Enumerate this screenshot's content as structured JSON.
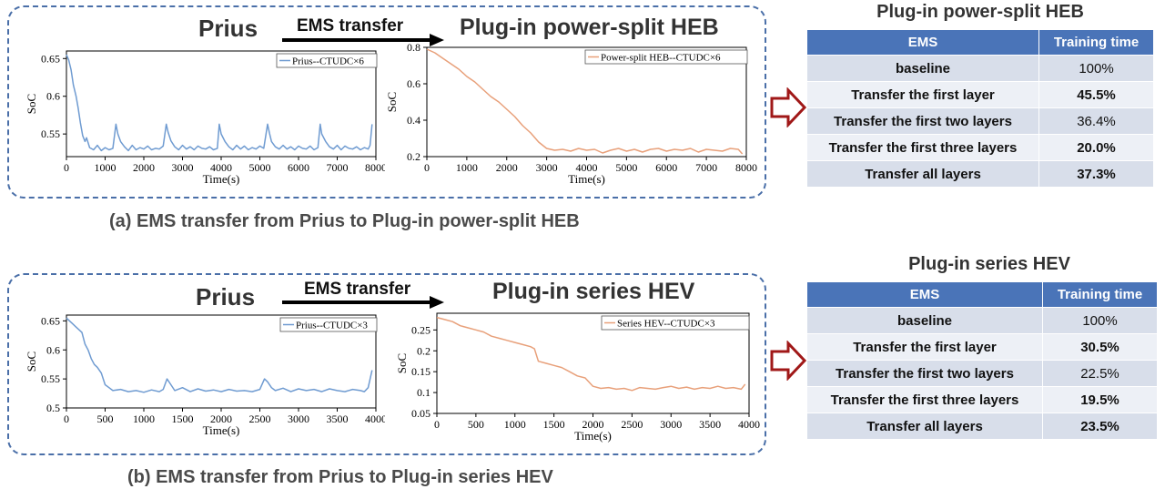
{
  "panel_a": {
    "left_title": "Prius",
    "arrow_label": "EMS transfer",
    "right_title": "Plug-in power-split HEB",
    "caption": "(a) EMS transfer from Prius to Plug-in power-split HEB"
  },
  "panel_b": {
    "left_title": "Prius",
    "arrow_label": "EMS transfer",
    "right_title": "Plug-in series HEV",
    "caption": "(b) EMS transfer from Prius to Plug-in series HEV"
  },
  "colors": {
    "blue_line": "#6f9bd1",
    "orange_line": "#e8a07a",
    "frame": "#4a6fa8",
    "header": "#4a74b8",
    "highlight": "#b00000"
  },
  "chart_data": [
    {
      "id": "a_left",
      "type": "line",
      "xlabel": "Time(s)",
      "ylabel": "SoC",
      "xlim": [
        0,
        8000
      ],
      "ylim": [
        0.52,
        0.66
      ],
      "xticks": [
        0,
        1000,
        2000,
        3000,
        4000,
        5000,
        6000,
        7000,
        8000
      ],
      "yticks": [
        0.55,
        0.6,
        0.65
      ],
      "ytick_labels": [
        "0.55",
        "0.6",
        "0.65"
      ],
      "series": [
        {
          "name": "Prius--CTUDC×6",
          "color": "#6f9bd1",
          "x": [
            0,
            60,
            120,
            180,
            250,
            300,
            360,
            420,
            480,
            520,
            600,
            700,
            800,
            900,
            1000,
            1100,
            1200,
            1280,
            1330,
            1400,
            1500,
            1600,
            1700,
            1800,
            1900,
            2000,
            2100,
            2200,
            2300,
            2400,
            2500,
            2580,
            2630,
            2700,
            2800,
            2900,
            3000,
            3100,
            3200,
            3300,
            3400,
            3500,
            3600,
            3700,
            3800,
            3900,
            3950,
            4000,
            4100,
            4200,
            4300,
            4400,
            4500,
            4600,
            4700,
            4800,
            4900,
            5000,
            5100,
            5200,
            5250,
            5300,
            5400,
            5500,
            5600,
            5700,
            5800,
            5900,
            6000,
            6100,
            6200,
            6300,
            6400,
            6500,
            6560,
            6600,
            6700,
            6800,
            6900,
            7000,
            7100,
            7200,
            7300,
            7400,
            7500,
            7600,
            7700,
            7800,
            7850,
            7900
          ],
          "y": [
            0.655,
            0.648,
            0.635,
            0.615,
            0.6,
            0.585,
            0.565,
            0.548,
            0.54,
            0.545,
            0.532,
            0.529,
            0.535,
            0.528,
            0.532,
            0.529,
            0.531,
            0.563,
            0.55,
            0.54,
            0.533,
            0.528,
            0.535,
            0.529,
            0.532,
            0.53,
            0.534,
            0.529,
            0.531,
            0.53,
            0.534,
            0.563,
            0.552,
            0.541,
            0.533,
            0.529,
            0.535,
            0.53,
            0.533,
            0.529,
            0.534,
            0.531,
            0.53,
            0.533,
            0.529,
            0.531,
            0.563,
            0.55,
            0.54,
            0.533,
            0.529,
            0.535,
            0.53,
            0.534,
            0.529,
            0.532,
            0.53,
            0.534,
            0.531,
            0.563,
            0.551,
            0.54,
            0.533,
            0.53,
            0.535,
            0.53,
            0.533,
            0.529,
            0.534,
            0.531,
            0.53,
            0.534,
            0.529,
            0.532,
            0.563,
            0.55,
            0.54,
            0.533,
            0.53,
            0.535,
            0.529,
            0.534,
            0.531,
            0.53,
            0.533,
            0.529,
            0.532,
            0.53,
            0.535,
            0.563
          ]
        }
      ]
    },
    {
      "id": "a_right",
      "type": "line",
      "xlabel": "Time(s)",
      "ylabel": "SoC",
      "xlim": [
        0,
        8000
      ],
      "ylim": [
        0.2,
        0.8
      ],
      "xticks": [
        0,
        1000,
        2000,
        3000,
        4000,
        5000,
        6000,
        7000,
        8000
      ],
      "yticks": [
        0.2,
        0.4,
        0.6,
        0.8
      ],
      "ytick_labels": [
        "0.2",
        "0.4",
        "0.6",
        "0.8"
      ],
      "series": [
        {
          "name": "Power-split HEB--CTUDC×6",
          "color": "#e8a07a",
          "x": [
            0,
            200,
            400,
            600,
            800,
            1000,
            1200,
            1400,
            1600,
            1800,
            2000,
            2200,
            2400,
            2600,
            2800,
            3000,
            3200,
            3400,
            3600,
            3800,
            4000,
            4200,
            4400,
            4600,
            4800,
            5000,
            5200,
            5400,
            5600,
            5800,
            6000,
            6200,
            6400,
            6600,
            6800,
            7000,
            7200,
            7400,
            7600,
            7800,
            7900
          ],
          "y": [
            0.79,
            0.77,
            0.74,
            0.71,
            0.68,
            0.64,
            0.61,
            0.57,
            0.53,
            0.5,
            0.46,
            0.42,
            0.37,
            0.33,
            0.28,
            0.245,
            0.235,
            0.24,
            0.23,
            0.245,
            0.235,
            0.24,
            0.22,
            0.235,
            0.245,
            0.23,
            0.24,
            0.225,
            0.24,
            0.245,
            0.23,
            0.24,
            0.235,
            0.245,
            0.225,
            0.24,
            0.235,
            0.23,
            0.245,
            0.24,
            0.215
          ]
        }
      ]
    },
    {
      "id": "b_left",
      "type": "line",
      "xlabel": "Time(s)",
      "ylabel": "SoC",
      "xlim": [
        0,
        4000
      ],
      "ylim": [
        0.5,
        0.66
      ],
      "xticks": [
        0,
        500,
        1000,
        1500,
        2000,
        2500,
        3000,
        3500,
        4000
      ],
      "yticks": [
        0.5,
        0.55,
        0.6,
        0.65
      ],
      "ytick_labels": [
        "0.5",
        "0.55",
        "0.6",
        "0.65"
      ],
      "series": [
        {
          "name": "Prius--CTUDC×3",
          "color": "#6f9bd1",
          "x": [
            0,
            40,
            80,
            120,
            160,
            200,
            240,
            280,
            320,
            360,
            400,
            450,
            500,
            550,
            600,
            700,
            800,
            900,
            1000,
            1100,
            1200,
            1250,
            1300,
            1350,
            1400,
            1500,
            1600,
            1700,
            1800,
            1900,
            2000,
            2100,
            2200,
            2300,
            2400,
            2500,
            2560,
            2600,
            2650,
            2700,
            2800,
            2900,
            3000,
            3100,
            3200,
            3300,
            3400,
            3500,
            3600,
            3700,
            3800,
            3850,
            3900,
            3950
          ],
          "y": [
            0.655,
            0.65,
            0.645,
            0.64,
            0.635,
            0.63,
            0.61,
            0.6,
            0.585,
            0.575,
            0.57,
            0.56,
            0.54,
            0.535,
            0.53,
            0.532,
            0.528,
            0.53,
            0.527,
            0.531,
            0.528,
            0.532,
            0.55,
            0.54,
            0.53,
            0.535,
            0.528,
            0.533,
            0.529,
            0.531,
            0.528,
            0.532,
            0.529,
            0.53,
            0.528,
            0.532,
            0.55,
            0.545,
            0.535,
            0.53,
            0.534,
            0.528,
            0.533,
            0.53,
            0.532,
            0.528,
            0.533,
            0.53,
            0.528,
            0.532,
            0.53,
            0.528,
            0.535,
            0.565
          ]
        }
      ]
    },
    {
      "id": "b_right",
      "type": "line",
      "xlabel": "Time(s)",
      "ylabel": "SoC",
      "xlim": [
        0,
        4000
      ],
      "ylim": [
        0.05,
        0.29
      ],
      "xticks": [
        0,
        500,
        1000,
        1500,
        2000,
        2500,
        3000,
        3500,
        4000
      ],
      "yticks": [
        0.05,
        0.1,
        0.15,
        0.2,
        0.25
      ],
      "ytick_labels": [
        "0.05",
        "0.1",
        "0.15",
        "0.2",
        "0.25"
      ],
      "series": [
        {
          "name": "Series HEV--CTUDC×3",
          "color": "#e8a07a",
          "x": [
            0,
            100,
            200,
            300,
            400,
            500,
            600,
            700,
            800,
            900,
            1000,
            1100,
            1200,
            1250,
            1300,
            1400,
            1500,
            1600,
            1700,
            1800,
            1900,
            2000,
            2100,
            2200,
            2300,
            2400,
            2500,
            2600,
            2700,
            2800,
            2900,
            3000,
            3100,
            3200,
            3300,
            3400,
            3500,
            3600,
            3700,
            3800,
            3900,
            3950
          ],
          "y": [
            0.28,
            0.275,
            0.27,
            0.26,
            0.255,
            0.25,
            0.245,
            0.235,
            0.23,
            0.225,
            0.22,
            0.215,
            0.21,
            0.205,
            0.175,
            0.17,
            0.165,
            0.16,
            0.15,
            0.14,
            0.135,
            0.115,
            0.11,
            0.112,
            0.108,
            0.11,
            0.105,
            0.112,
            0.11,
            0.108,
            0.112,
            0.115,
            0.11,
            0.113,
            0.108,
            0.112,
            0.11,
            0.115,
            0.11,
            0.112,
            0.108,
            0.12
          ]
        }
      ]
    }
  ],
  "table_a": {
    "title": "Plug-in power-split HEB",
    "headers": [
      "EMS",
      "Training time"
    ],
    "rows": [
      {
        "ems": "baseline",
        "time": "100%"
      },
      {
        "ems": "Transfer the first layer",
        "time": "45.5%"
      },
      {
        "ems": "Transfer the first two layers",
        "time": "36.4%"
      },
      {
        "ems": "Transfer the first three layers",
        "time": "20.0%"
      },
      {
        "ems": "Transfer all layers",
        "time": "37.3%"
      }
    ]
  },
  "table_b": {
    "title": "Plug-in series HEV",
    "headers": [
      "EMS",
      "Training time"
    ],
    "rows": [
      {
        "ems": "baseline",
        "time": "100%"
      },
      {
        "ems": "Transfer the first layer",
        "time": "30.5%"
      },
      {
        "ems": "Transfer the first two layers",
        "time": "22.5%"
      },
      {
        "ems": "Transfer the first three layers",
        "time": "19.5%"
      },
      {
        "ems": "Transfer all layers",
        "time": "23.5%"
      }
    ]
  }
}
